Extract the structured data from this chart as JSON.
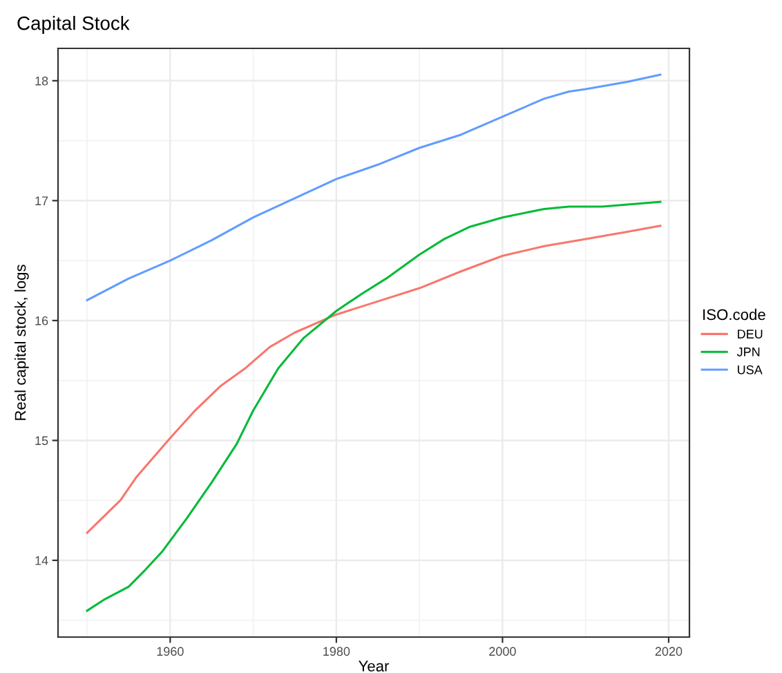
{
  "chart_data": {
    "type": "line",
    "title": "Capital Stock",
    "xlabel": "Year",
    "ylabel": "Real capital stock, logs",
    "legend_title": "ISO.code",
    "xlim": [
      1946.5,
      2022.5
    ],
    "ylim": [
      13.36,
      18.27
    ],
    "xticks": [
      1960,
      1980,
      2000,
      2020
    ],
    "yticks": [
      14,
      15,
      16,
      17,
      18
    ],
    "grid": true,
    "legend": "right",
    "series": [
      {
        "name": "DEU",
        "color": "#f8766d",
        "x": [
          1950,
          1954,
          1956,
          1960,
          1963,
          1966,
          1969,
          1972,
          1975,
          1980,
          1985,
          1990,
          1995,
          2000,
          2005,
          2010,
          2015,
          2019
        ],
        "values": [
          14.23,
          14.5,
          14.7,
          15.02,
          15.25,
          15.45,
          15.6,
          15.78,
          15.9,
          16.05,
          16.16,
          16.27,
          16.41,
          16.54,
          16.62,
          16.68,
          16.74,
          16.79
        ]
      },
      {
        "name": "JPN",
        "color": "#00ba38",
        "x": [
          1950,
          1952,
          1955,
          1957,
          1959,
          1962,
          1965,
          1968,
          1970,
          1973,
          1976,
          1980,
          1983,
          1986,
          1990,
          1993,
          1996,
          2000,
          2005,
          2008,
          2012,
          2019
        ],
        "values": [
          13.58,
          13.67,
          13.78,
          13.92,
          14.07,
          14.35,
          14.65,
          14.97,
          15.25,
          15.6,
          15.85,
          16.08,
          16.22,
          16.35,
          16.55,
          16.68,
          16.78,
          16.86,
          16.93,
          16.95,
          16.95,
          16.99
        ]
      },
      {
        "name": "USA",
        "color": "#619cff",
        "x": [
          1950,
          1955,
          1960,
          1965,
          1970,
          1975,
          1980,
          1985,
          1990,
          1995,
          2000,
          2005,
          2008,
          2010,
          2015,
          2019
        ],
        "values": [
          16.17,
          16.35,
          16.5,
          16.67,
          16.86,
          17.02,
          17.18,
          17.3,
          17.44,
          17.55,
          17.7,
          17.85,
          17.91,
          17.93,
          17.99,
          18.05
        ]
      }
    ]
  }
}
